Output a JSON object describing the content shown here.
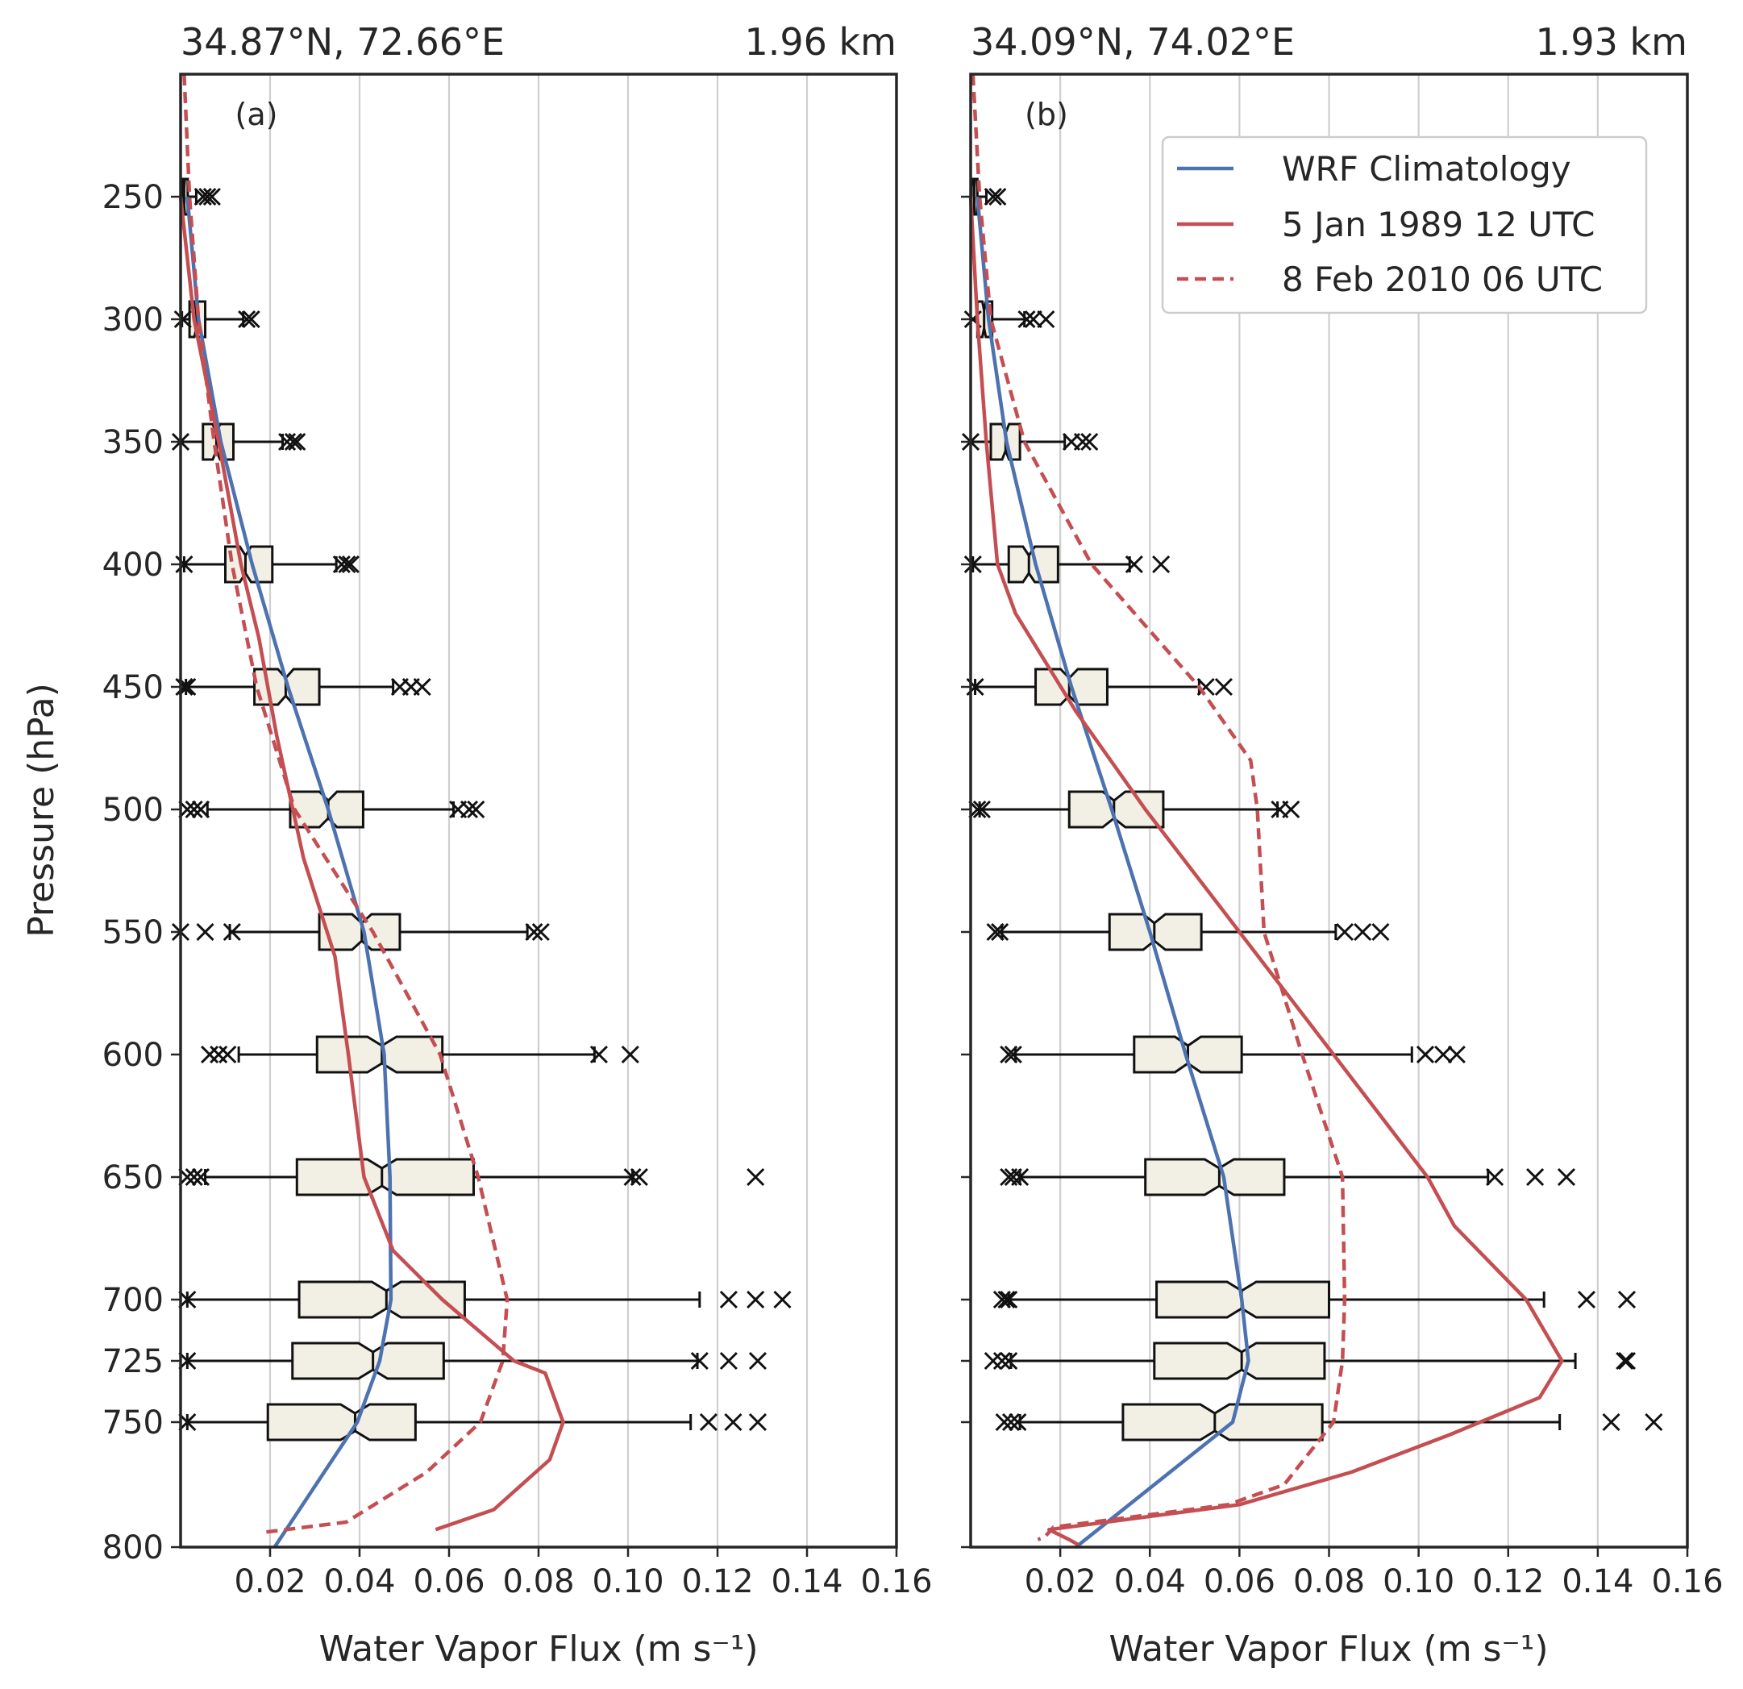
{
  "figure": {
    "x_axis_label": "Water Vapor Flux (m s⁻¹)",
    "y_axis_label": "Pressure (hPa)"
  },
  "colors": {
    "wrf_climatology": "#4c72b0",
    "case_1989": "#c44e52",
    "case_2010": "#c44e52",
    "box_fill": "#f2efe4"
  },
  "chart_data": [
    {
      "type": "boxplot_with_profiles",
      "panel": "(a)",
      "location": "34.87°N, 72.66°E",
      "elevation": "1.96 km",
      "xlim": [
        0,
        0.16
      ],
      "ylim": [
        800,
        200
      ],
      "x_ticks": [
        "0.02",
        "0.04",
        "0.06",
        "0.08",
        "0.10",
        "0.12",
        "0.14",
        "0.16"
      ],
      "y_ticks": [
        "250",
        "300",
        "350",
        "400",
        "450",
        "500",
        "550",
        "600",
        "650",
        "700",
        "725",
        "750",
        "800"
      ],
      "grid": "vertical",
      "boxes": [
        {
          "p": 250,
          "q1": 0.0003,
          "med": 0.0008,
          "q3": 0.0016,
          "w_lo": 0.0,
          "w_hi": 0.0035,
          "fliers": [
            0.005,
            0.006,
            0.007
          ]
        },
        {
          "p": 300,
          "q1": 0.002,
          "med": 0.0035,
          "q3": 0.0055,
          "w_lo": 0.0003,
          "w_hi": 0.014,
          "fliers": [
            0.0005,
            0.0148,
            0.0158
          ]
        },
        {
          "p": 350,
          "q1": 0.005,
          "med": 0.008,
          "q3": 0.0118,
          "w_lo": 0.0,
          "w_hi": 0.0228,
          "fliers": [
            0.0,
            0.0238,
            0.0252,
            0.026
          ]
        },
        {
          "p": 400,
          "q1": 0.01,
          "med": 0.0145,
          "q3": 0.0205,
          "w_lo": 0.0008,
          "w_hi": 0.0348,
          "fliers": [
            0.0008,
            0.036,
            0.0372,
            0.038
          ]
        },
        {
          "p": 450,
          "q1": 0.0165,
          "med": 0.0235,
          "q3": 0.031,
          "w_lo": 0.0012,
          "w_hi": 0.0475,
          "fliers": [
            0.0008,
            0.0015,
            0.049,
            0.0515,
            0.054
          ]
        },
        {
          "p": 500,
          "q1": 0.0245,
          "med": 0.033,
          "q3": 0.0408,
          "w_lo": 0.006,
          "w_hi": 0.061,
          "fliers": [
            0.0015,
            0.003,
            0.0045,
            0.062,
            0.0645,
            0.066
          ]
        },
        {
          "p": 550,
          "q1": 0.031,
          "med": 0.0405,
          "q3": 0.049,
          "w_lo": 0.011,
          "w_hi": 0.0775,
          "fliers": [
            0.0,
            0.0055,
            0.0115,
            0.079,
            0.0805
          ]
        },
        {
          "p": 600,
          "q1": 0.0305,
          "med": 0.045,
          "q3": 0.0585,
          "w_lo": 0.013,
          "w_hi": 0.0925,
          "fliers": [
            0.0065,
            0.0085,
            0.0105,
            0.0935,
            0.1005
          ]
        },
        {
          "p": 650,
          "q1": 0.026,
          "med": 0.045,
          "q3": 0.0655,
          "w_lo": 0.0055,
          "w_hi": 0.101,
          "fliers": [
            0.0015,
            0.003,
            0.0045,
            0.101,
            0.1025,
            0.1285
          ]
        },
        {
          "p": 700,
          "q1": 0.0265,
          "med": 0.046,
          "q3": 0.0635,
          "w_lo": 0.0015,
          "w_hi": 0.116,
          "fliers": [
            0.0015,
            0.1225,
            0.1285,
            0.1345
          ]
        },
        {
          "p": 725,
          "q1": 0.025,
          "med": 0.043,
          "q3": 0.0588,
          "w_lo": 0.0015,
          "w_hi": 0.1155,
          "fliers": [
            0.0015,
            0.116,
            0.1225,
            0.129
          ]
        },
        {
          "p": 750,
          "q1": 0.0195,
          "med": 0.039,
          "q3": 0.0525,
          "w_lo": 0.0015,
          "w_hi": 0.114,
          "fliers": [
            0.0015,
            0.118,
            0.1235,
            0.129
          ]
        }
      ],
      "series": [
        {
          "name": "WRF Climatology",
          "style": "solid",
          "color": "#4c72b0",
          "points": [
            [
              0.0015,
              250
            ],
            [
              0.004,
              300
            ],
            [
              0.009,
              350
            ],
            [
              0.016,
              400
            ],
            [
              0.024,
              450
            ],
            [
              0.033,
              500
            ],
            [
              0.041,
              550
            ],
            [
              0.0455,
              600
            ],
            [
              0.0468,
              650
            ],
            [
              0.047,
              700
            ],
            [
              0.0445,
              725
            ],
            [
              0.0395,
              750
            ],
            [
              0.021,
              800
            ]
          ]
        },
        {
          "name": "5 Jan 1989 12 UTC",
          "style": "solid",
          "color": "#c44e52",
          "points": [
            [
              0.0,
              250
            ],
            [
              0.003,
              300
            ],
            [
              0.0085,
              350
            ],
            [
              0.0135,
              400
            ],
            [
              0.0175,
              430
            ],
            [
              0.0215,
              470
            ],
            [
              0.0275,
              520
            ],
            [
              0.0345,
              560
            ],
            [
              0.0375,
              600
            ],
            [
              0.041,
              650
            ],
            [
              0.0475,
              680
            ],
            [
              0.0585,
              700
            ],
            [
              0.0745,
              725
            ],
            [
              0.0815,
              730
            ],
            [
              0.0855,
              750
            ],
            [
              0.0825,
              765
            ],
            [
              0.07,
              785
            ],
            [
              0.057,
              793
            ]
          ]
        },
        {
          "name": "8 Feb 2010 06 UTC",
          "style": "dashed",
          "color": "#c44e52",
          "points": [
            [
              0.0008,
              200
            ],
            [
              0.002,
              250
            ],
            [
              0.004,
              300
            ],
            [
              0.0075,
              350
            ],
            [
              0.0115,
              400
            ],
            [
              0.017,
              450
            ],
            [
              0.0255,
              500
            ],
            [
              0.043,
              550
            ],
            [
              0.058,
              600
            ],
            [
              0.0665,
              650
            ],
            [
              0.073,
              700
            ],
            [
              0.072,
              725
            ],
            [
              0.067,
              750
            ],
            [
              0.055,
              770
            ],
            [
              0.037,
              790
            ],
            [
              0.019,
              794
            ]
          ]
        }
      ]
    },
    {
      "type": "boxplot_with_profiles",
      "panel": "(b)",
      "location": "34.09°N, 74.02°E",
      "elevation": "1.93 km",
      "xlim": [
        0,
        0.16
      ],
      "ylim": [
        800,
        200
      ],
      "x_ticks": [
        "0.02",
        "0.04",
        "0.06",
        "0.08",
        "0.10",
        "0.12",
        "0.14",
        "0.16"
      ],
      "y_ticks": [],
      "grid": "vertical",
      "legend": {
        "position": "upper right",
        "entries": [
          "WRF Climatology",
          "5 Jan 1989 12 UTC",
          "8 Feb 2010 06 UTC"
        ]
      },
      "boxes": [
        {
          "p": 250,
          "q1": 0.0002,
          "med": 0.0008,
          "q3": 0.0015,
          "w_lo": 0.0,
          "w_hi": 0.0035,
          "fliers": [
            0.005,
            0.006
          ]
        },
        {
          "p": 300,
          "q1": 0.0015,
          "med": 0.003,
          "q3": 0.0048,
          "w_lo": 0.0,
          "w_hi": 0.012,
          "fliers": [
            0.0005,
            0.0125,
            0.014,
            0.0168
          ]
        },
        {
          "p": 350,
          "q1": 0.0045,
          "med": 0.0078,
          "q3": 0.011,
          "w_lo": 0.0,
          "w_hi": 0.021,
          "fliers": [
            0.0,
            0.0225,
            0.025,
            0.0265
          ]
        },
        {
          "p": 400,
          "q1": 0.0085,
          "med": 0.013,
          "q3": 0.0195,
          "w_lo": 0.0005,
          "w_hi": 0.0355,
          "fliers": [
            0.0005,
            0.0365,
            0.0425
          ]
        },
        {
          "p": 450,
          "q1": 0.0145,
          "med": 0.022,
          "q3": 0.0305,
          "w_lo": 0.001,
          "w_hi": 0.051,
          "fliers": [
            0.001,
            0.0525,
            0.0565
          ]
        },
        {
          "p": 500,
          "q1": 0.022,
          "med": 0.032,
          "q3": 0.043,
          "w_lo": 0.002,
          "w_hi": 0.0685,
          "fliers": [
            0.0015,
            0.0025,
            0.069,
            0.0715
          ]
        },
        {
          "p": 550,
          "q1": 0.031,
          "med": 0.041,
          "q3": 0.0515,
          "w_lo": 0.007,
          "w_hi": 0.0815,
          "fliers": [
            0.0055,
            0.0065,
            0.0835,
            0.0875,
            0.0915
          ]
        },
        {
          "p": 600,
          "q1": 0.0365,
          "med": 0.0485,
          "q3": 0.0605,
          "w_lo": 0.01,
          "w_hi": 0.0985,
          "fliers": [
            0.0085,
            0.0095,
            0.1015,
            0.1055,
            0.1085
          ]
        },
        {
          "p": 650,
          "q1": 0.039,
          "med": 0.0555,
          "q3": 0.07,
          "w_lo": 0.011,
          "w_hi": 0.1155,
          "fliers": [
            0.0085,
            0.0095,
            0.011,
            0.117,
            0.126,
            0.133
          ]
        },
        {
          "p": 700,
          "q1": 0.0415,
          "med": 0.0605,
          "q3": 0.08,
          "w_lo": 0.0085,
          "w_hi": 0.128,
          "fliers": [
            0.007,
            0.008,
            0.0085,
            0.1375,
            0.1465
          ]
        },
        {
          "p": 725,
          "q1": 0.041,
          "med": 0.0605,
          "q3": 0.079,
          "w_lo": 0.009,
          "w_hi": 0.135,
          "fliers": [
            0.005,
            0.007,
            0.0085,
            0.146,
            0.1465
          ]
        },
        {
          "p": 750,
          "q1": 0.034,
          "med": 0.0545,
          "q3": 0.0785,
          "w_lo": 0.011,
          "w_hi": 0.1315,
          "fliers": [
            0.0075,
            0.009,
            0.0105,
            0.143,
            0.1525
          ]
        }
      ],
      "series": [
        {
          "name": "WRF Climatology",
          "style": "solid",
          "color": "#4c72b0",
          "points": [
            [
              0.0015,
              250
            ],
            [
              0.004,
              300
            ],
            [
              0.008,
              350
            ],
            [
              0.0145,
              400
            ],
            [
              0.0225,
              450
            ],
            [
              0.0315,
              500
            ],
            [
              0.04,
              550
            ],
            [
              0.048,
              600
            ],
            [
              0.0565,
              650
            ],
            [
              0.0605,
              700
            ],
            [
              0.062,
              725
            ],
            [
              0.0585,
              750
            ],
            [
              0.0235,
              800
            ]
          ]
        },
        {
          "name": "5 Jan 1989 12 UTC",
          "style": "solid",
          "color": "#c44e52",
          "points": [
            [
              0.0,
              250
            ],
            [
              0.0015,
              300
            ],
            [
              0.0035,
              350
            ],
            [
              0.006,
              400
            ],
            [
              0.01,
              420
            ],
            [
              0.0235,
              460
            ],
            [
              0.039,
              500
            ],
            [
              0.06,
              550
            ],
            [
              0.081,
              600
            ],
            [
              0.102,
              650
            ],
            [
              0.108,
              670
            ],
            [
              0.124,
              700
            ],
            [
              0.132,
              725
            ],
            [
              0.127,
              740
            ],
            [
              0.107,
              755
            ],
            [
              0.085,
              770
            ],
            [
              0.06,
              783
            ],
            [
              0.0175,
              793
            ],
            [
              0.022,
              797
            ],
            [
              0.024,
              799
            ]
          ]
        },
        {
          "name": "8 Feb 2010 06 UTC",
          "style": "dashed",
          "color": "#c44e52",
          "points": [
            [
              0.0005,
              200
            ],
            [
              0.002,
              250
            ],
            [
              0.0045,
              300
            ],
            [
              0.012,
              350
            ],
            [
              0.027,
              400
            ],
            [
              0.051,
              450
            ],
            [
              0.0625,
              480
            ],
            [
              0.064,
              500
            ],
            [
              0.0655,
              550
            ],
            [
              0.074,
              600
            ],
            [
              0.083,
              650
            ],
            [
              0.0835,
              700
            ],
            [
              0.083,
              725
            ],
            [
              0.081,
              750
            ],
            [
              0.07,
              775
            ],
            [
              0.0575,
              783
            ],
            [
              0.0185,
              792
            ],
            [
              0.0165,
              796
            ],
            [
              0.015,
              797
            ]
          ]
        }
      ]
    }
  ]
}
